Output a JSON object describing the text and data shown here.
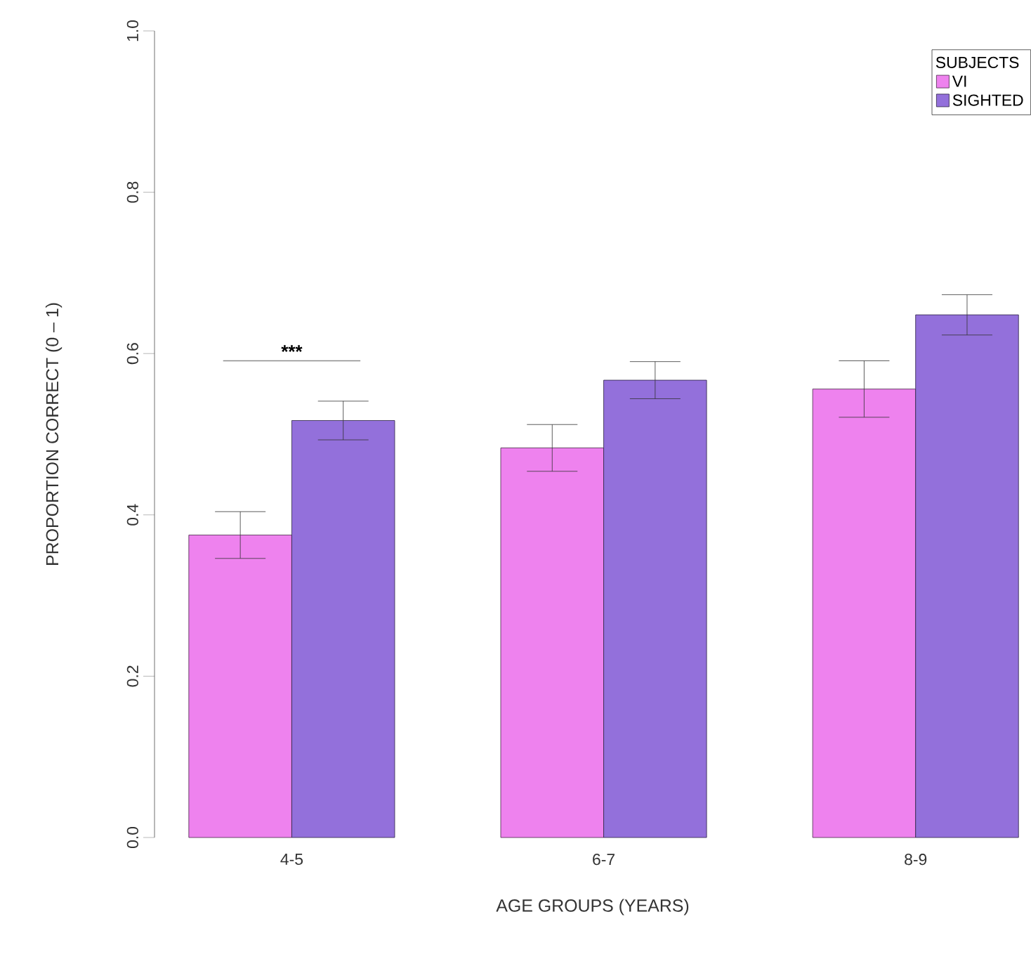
{
  "chart_data": {
    "type": "bar",
    "xlabel": "AGE GROUPS (YEARS)",
    "ylabel": "PROPORTION CORRECT (0 – 1)",
    "legend_title": "SUBJECTS",
    "categories": [
      "4-5",
      "6-7",
      "8-9"
    ],
    "series": [
      {
        "name": "VI",
        "color": "#ee82ee",
        "values": [
          0.375,
          0.483,
          0.556
        ],
        "errors": [
          0.029,
          0.029,
          0.035
        ]
      },
      {
        "name": "SIGHTED",
        "color": "#9370db",
        "values": [
          0.517,
          0.567,
          0.648
        ],
        "errors": [
          0.024,
          0.023,
          0.025
        ]
      }
    ],
    "ylim": [
      0,
      1
    ],
    "yticks": [
      {
        "value": 0,
        "label": "0.0"
      },
      {
        "value": 0.2,
        "label": "0.2"
      },
      {
        "value": 0.4,
        "label": "0.4"
      },
      {
        "value": 0.6,
        "label": "0.6"
      },
      {
        "value": 0.8,
        "label": "0.8"
      },
      {
        "value": 1,
        "label": "1.0"
      }
    ],
    "annotations": [
      "***"
    ],
    "legend": "top right"
  }
}
